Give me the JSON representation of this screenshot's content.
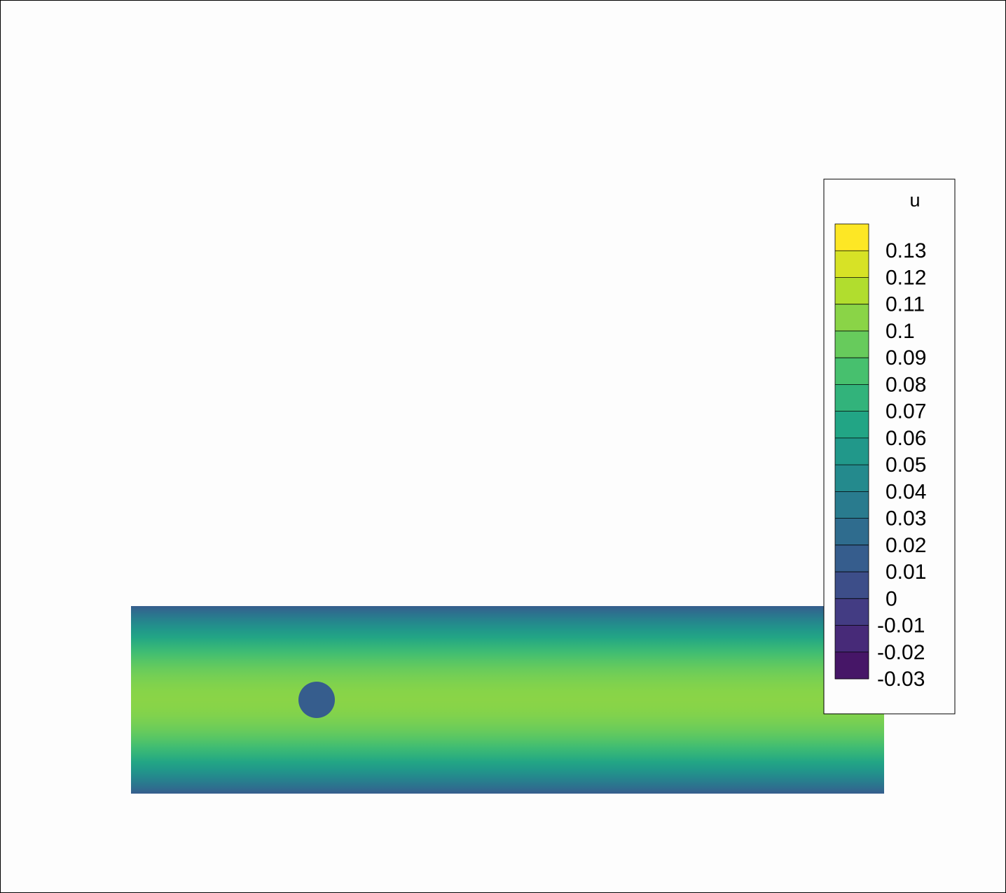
{
  "chart_data": {
    "type": "heatmap",
    "title": "",
    "variable": "u",
    "colormap": "viridis",
    "color_range": [
      -0.035,
      0.135
    ],
    "color_levels": [
      -0.03,
      -0.02,
      -0.01,
      0,
      0.01,
      0.02,
      0.03,
      0.04,
      0.05,
      0.06,
      0.07,
      0.08,
      0.09,
      0.1,
      0.11,
      0.12,
      0.13
    ],
    "legend_labels": [
      "0.13",
      "0.12",
      "0.11",
      "0.1",
      "0.09",
      "0.08",
      "0.07",
      "0.06",
      "0.05",
      "0.04",
      "0.03",
      "0.02",
      "0.01",
      "0",
      "-0.01",
      "-0.02",
      "-0.03"
    ],
    "legend_placement": "right",
    "field": {
      "description_profile": "parabolic channel flow profile",
      "wall_value": 0.015,
      "centerline_value": 0.105,
      "obstacle_value": 0.015
    },
    "colors": {
      "background": "#fdfdfd",
      "frame": "#000000"
    }
  }
}
